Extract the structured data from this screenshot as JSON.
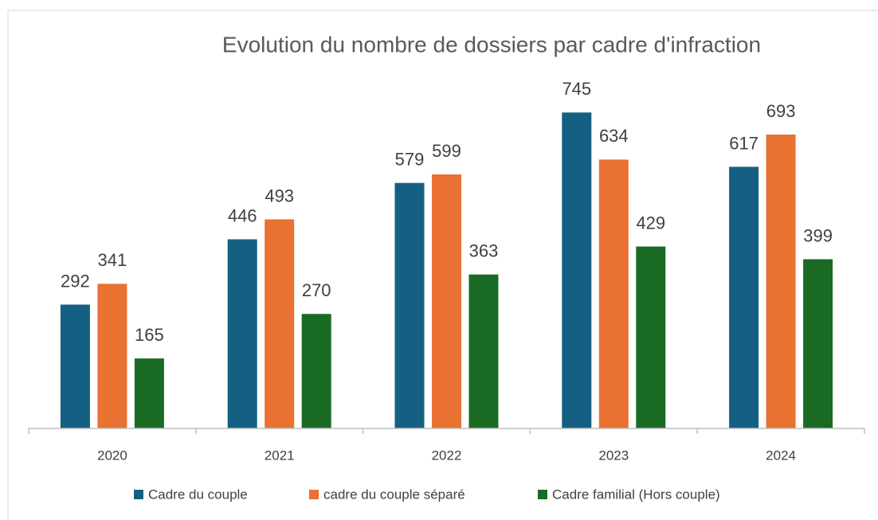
{
  "chart_data": {
    "type": "bar",
    "title": "Evolution du nombre de dossiers par cadre d'infraction",
    "categories": [
      "2020",
      "2021",
      "2022",
      "2023",
      "2024"
    ],
    "series": [
      {
        "name": "Cadre du couple",
        "color": "#156082",
        "values": [
          292,
          446,
          579,
          745,
          617
        ]
      },
      {
        "name": "cadre du couple séparé",
        "color": "#e97132",
        "values": [
          341,
          493,
          599,
          634,
          693
        ]
      },
      {
        "name": "Cadre familial (Hors couple)",
        "color": "#196b24",
        "values": [
          165,
          270,
          363,
          429,
          399
        ]
      }
    ],
    "ylim": [
      0,
      800
    ],
    "legend": "bottom"
  }
}
